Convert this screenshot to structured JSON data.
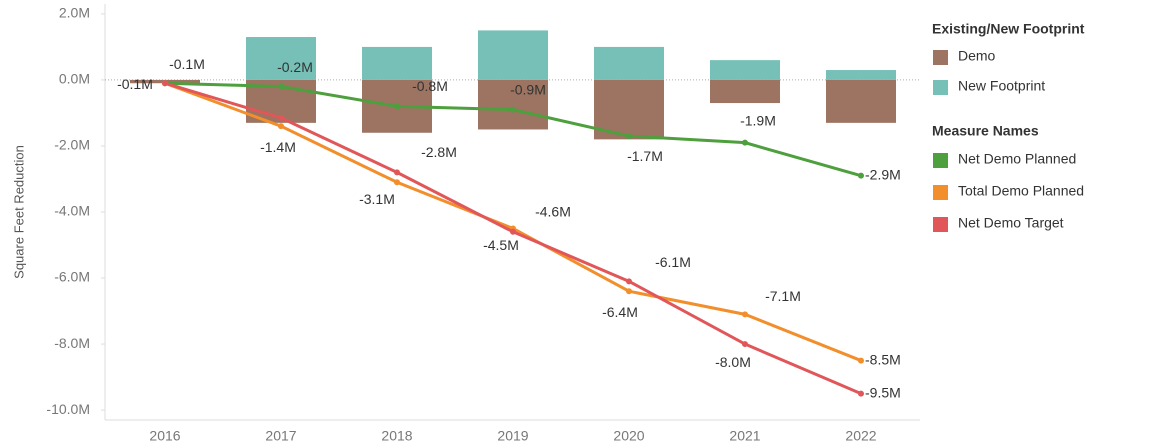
{
  "chart_data": {
    "type": "combo",
    "y_label": "Square Feet Reduction",
    "categories": [
      "2016",
      "2017",
      "2018",
      "2019",
      "2020",
      "2021",
      "2022"
    ],
    "ylim": [
      -10300000,
      2300000
    ],
    "yticks": [
      {
        "value": 2000000,
        "label": "2.0M"
      },
      {
        "value": 0,
        "label": "0.0M"
      },
      {
        "value": -2000000,
        "label": "-2.0M"
      },
      {
        "value": -4000000,
        "label": "-4.0M"
      },
      {
        "value": -6000000,
        "label": "-6.0M"
      },
      {
        "value": -8000000,
        "label": "-8.0M"
      },
      {
        "value": -10000000,
        "label": "-10.0M"
      }
    ],
    "bar_legend_title": "Existing/New Footprint",
    "line_legend_title": "Measure Names",
    "series": [
      {
        "name": "Demo",
        "mark": "bar",
        "color": "#9c7461",
        "values": [
          -100000,
          -1300000,
          -1600000,
          -1500000,
          -1800000,
          -700000,
          -1300000
        ]
      },
      {
        "name": "New Footprint",
        "mark": "bar",
        "color": "#76c0b8",
        "values": [
          0,
          1300000,
          1000000,
          1500000,
          1000000,
          600000,
          300000
        ]
      },
      {
        "name": "Net Demo Planned",
        "mark": "line",
        "color": "#4e9f3d",
        "values": [
          -100000,
          -200000,
          -800000,
          -900000,
          -1700000,
          -1900000,
          -2900000
        ],
        "value_labels": [
          "-0.1M",
          "-0.2M",
          "-0.8M",
          "-0.9M",
          "-1.7M",
          "-1.9M",
          "-2.9M"
        ]
      },
      {
        "name": "Total Demo Planned",
        "mark": "line",
        "color": "#f28e2b",
        "values": [
          -100000,
          -1400000,
          -3100000,
          -4500000,
          -6400000,
          -7100000,
          -8500000
        ],
        "value_labels": [
          "-0.1M",
          "-1.4M",
          "-3.1M",
          "-4.5M",
          "-6.4M",
          "-7.1M",
          "-8.5M"
        ]
      },
      {
        "name": "Net Demo Target",
        "mark": "line",
        "color": "#e15759",
        "values": [
          -100000,
          -1150000,
          -2800000,
          -4600000,
          -6100000,
          -8000000,
          -9500000
        ],
        "value_labels": [
          null,
          null,
          "-2.8M",
          "-4.6M",
          "-6.1M",
          "-8.0M",
          "-9.5M"
        ]
      }
    ]
  }
}
